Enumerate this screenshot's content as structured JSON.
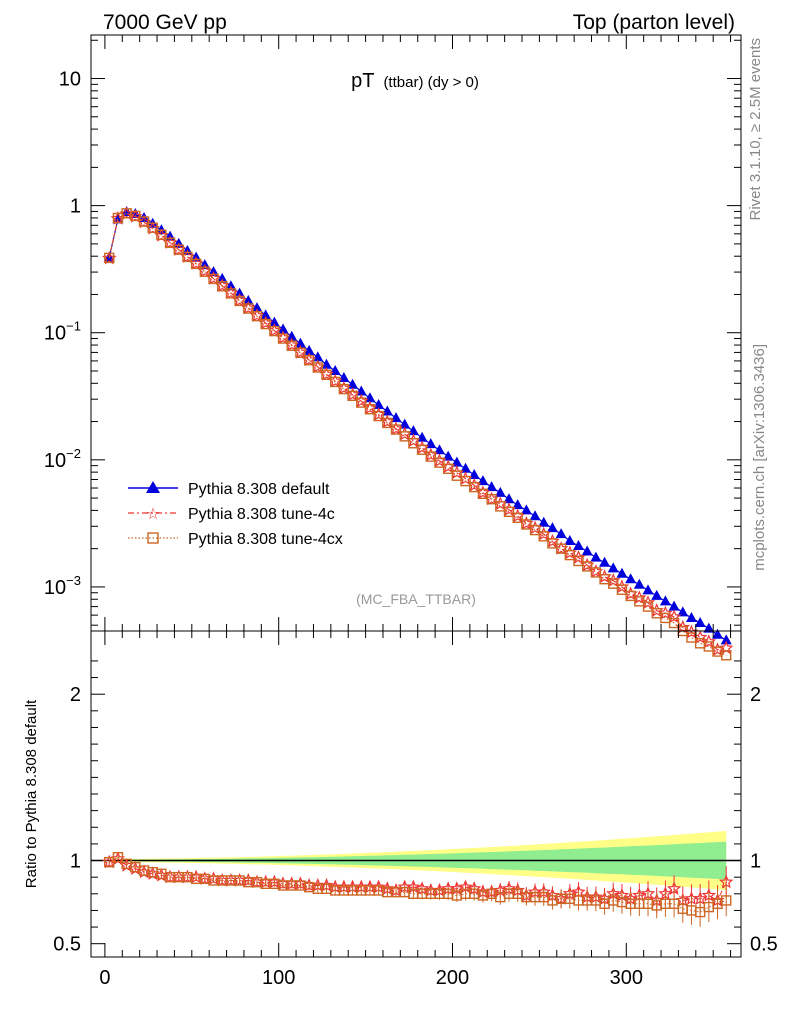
{
  "header": {
    "left": "7000 GeV pp",
    "right": "Top (parton level)"
  },
  "side_labels": {
    "rivet": "Rivet 3.1.10, ≥ 2.5M events",
    "mcplots": "mcplots.cern.ch [arXiv:1306.3436]"
  },
  "chart_data": [
    {
      "type": "line",
      "panel": "main",
      "title_main": "pT",
      "title_sub": "(ttbar) (dy > 0)",
      "watermark": "(MC_FBA_TTBAR)",
      "xlabel": "",
      "ylabel": "",
      "yscale": "log",
      "xlim": [
        -8,
        366
      ],
      "ylim": [
        0.00045,
        22
      ],
      "y_ticks": [
        {
          "v": 10,
          "base": "10",
          "exp": ""
        },
        {
          "v": 1,
          "base": "1",
          "exp": ""
        },
        {
          "v": 0.1,
          "base": "10",
          "exp": "−1"
        },
        {
          "v": 0.01,
          "base": "10",
          "exp": "−2"
        },
        {
          "v": 0.001,
          "base": "10",
          "exp": "−3"
        }
      ],
      "legend_position": "bottom-left",
      "x": [
        2.5,
        7.5,
        12.5,
        17.5,
        22.5,
        27.5,
        32.5,
        37.5,
        42.5,
        47.5,
        52.5,
        57.5,
        62.5,
        67.5,
        72.5,
        77.5,
        82.5,
        87.5,
        92.5,
        97.5,
        102.5,
        107.5,
        112.5,
        117.5,
        122.5,
        127.5,
        132.5,
        137.5,
        142.5,
        147.5,
        152.5,
        157.5,
        162.5,
        167.5,
        172.5,
        177.5,
        182.5,
        187.5,
        192.5,
        197.5,
        202.5,
        207.5,
        212.5,
        217.5,
        222.5,
        227.5,
        232.5,
        237.5,
        242.5,
        247.5,
        252.5,
        257.5,
        262.5,
        267.5,
        272.5,
        277.5,
        282.5,
        287.5,
        292.5,
        297.5,
        302.5,
        307.5,
        312.5,
        317.5,
        322.5,
        327.5,
        332.5,
        337.5,
        342.5,
        347.5,
        352.5,
        357.5
      ],
      "series": [
        {
          "name": "Pythia 8.308 default",
          "color": "#0000dd",
          "marker": "triangle",
          "values": [
            0.39,
            0.78,
            0.89,
            0.86,
            0.8,
            0.72,
            0.64,
            0.57,
            0.5,
            0.44,
            0.39,
            0.34,
            0.3,
            0.265,
            0.232,
            0.203,
            0.178,
            0.156,
            0.137,
            0.12,
            0.106,
            0.093,
            0.082,
            0.072,
            0.064,
            0.056,
            0.05,
            0.044,
            0.039,
            0.0345,
            0.0305,
            0.027,
            0.024,
            0.0213,
            0.0189,
            0.0168,
            0.0149,
            0.0133,
            0.0119,
            0.0106,
            0.0095,
            0.0085,
            0.0076,
            0.0068,
            0.0061,
            0.0055,
            0.0049,
            0.0044,
            0.004,
            0.0036,
            0.0032,
            0.0029,
            0.0026,
            0.0023,
            0.0021,
            0.0019,
            0.0017,
            0.00155,
            0.0014,
            0.00127,
            0.00115,
            0.00104,
            0.00094,
            0.00085,
            0.00077,
            0.0007,
            0.00063,
            0.00057,
            0.00052,
            0.00047,
            0.00042,
            0.00038
          ]
        },
        {
          "name": "Pythia 8.308 tune-4c",
          "color": "#ee3333",
          "marker": "star",
          "values": [
            0.385,
            0.79,
            0.86,
            0.82,
            0.74,
            0.66,
            0.58,
            0.51,
            0.45,
            0.395,
            0.35,
            0.305,
            0.267,
            0.234,
            0.205,
            0.179,
            0.156,
            0.136,
            0.119,
            0.104,
            0.091,
            0.08,
            0.07,
            0.061,
            0.0538,
            0.047,
            0.0415,
            0.0365,
            0.0325,
            0.0289,
            0.0255,
            0.0227,
            0.0199,
            0.0175,
            0.0159,
            0.0141,
            0.0124,
            0.0109,
            0.0098,
            0.0088,
            0.0079,
            0.0071,
            0.0063,
            0.0055,
            0.0049,
            0.0045,
            0.00405,
            0.0036,
            0.00315,
            0.0029,
            0.0026,
            0.00228,
            0.002,
            0.00185,
            0.0017,
            0.00148,
            0.00132,
            0.0012,
            0.00112,
            0.001,
            0.00088,
            0.00082,
            0.00075,
            0.00065,
            0.00062,
            0.00058,
            0.00048,
            0.00044,
            0.0004,
            0.00037,
            0.00032,
            0.00033
          ]
        },
        {
          "name": "Pythia 8.308 tune-4cx",
          "color": "#cc6622",
          "marker": "square",
          "values": [
            0.388,
            0.8,
            0.87,
            0.83,
            0.75,
            0.67,
            0.59,
            0.51,
            0.45,
            0.395,
            0.348,
            0.302,
            0.265,
            0.232,
            0.204,
            0.178,
            0.155,
            0.135,
            0.117,
            0.103,
            0.09,
            0.079,
            0.0695,
            0.0608,
            0.0533,
            0.0467,
            0.041,
            0.036,
            0.0319,
            0.0282,
            0.025,
            0.0221,
            0.0195,
            0.0173,
            0.0153,
            0.0135,
            0.012,
            0.0106,
            0.0095,
            0.0085,
            0.0075,
            0.0068,
            0.0061,
            0.0054,
            0.0049,
            0.0043,
            0.0039,
            0.0035,
            0.0031,
            0.0028,
            0.0025,
            0.0022,
            0.002,
            0.00178,
            0.0016,
            0.00145,
            0.0013,
            0.00115,
            0.00106,
            0.00095,
            0.00085,
            0.00077,
            0.0007,
            0.00062,
            0.00057,
            0.00052,
            0.00045,
            0.0004,
            0.00036,
            0.00034,
            0.00031,
            0.00029
          ]
        }
      ]
    },
    {
      "type": "line",
      "panel": "ratio",
      "ylabel": "Ratio to Pythia 8.308 default",
      "xlabel": "",
      "xlim": [
        -8,
        366
      ],
      "ylim": [
        0.42,
        2.38
      ],
      "y_ticks": [
        0.5,
        1,
        2
      ],
      "x_ticks": [
        0,
        100,
        200,
        300
      ],
      "band_colors": {
        "inner": "#90ee90",
        "outer": "#ffff88"
      },
      "series": [
        {
          "name": "Pythia 8.308 tune-4c",
          "color": "#ee3333",
          "values": [
            0.99,
            1.01,
            0.97,
            0.95,
            0.93,
            0.92,
            0.91,
            0.9,
            0.9,
            0.9,
            0.9,
            0.89,
            0.89,
            0.88,
            0.88,
            0.88,
            0.88,
            0.87,
            0.87,
            0.87,
            0.86,
            0.86,
            0.86,
            0.85,
            0.85,
            0.85,
            0.84,
            0.84,
            0.84,
            0.84,
            0.84,
            0.84,
            0.83,
            0.82,
            0.84,
            0.84,
            0.83,
            0.82,
            0.82,
            0.83,
            0.83,
            0.84,
            0.83,
            0.81,
            0.81,
            0.82,
            0.83,
            0.82,
            0.79,
            0.81,
            0.81,
            0.79,
            0.77,
            0.8,
            0.81,
            0.78,
            0.78,
            0.77,
            0.8,
            0.79,
            0.77,
            0.79,
            0.8,
            0.76,
            0.8,
            0.83,
            0.76,
            0.77,
            0.77,
            0.79,
            0.76,
            0.87
          ]
        },
        {
          "name": "Pythia 8.308 tune-4cx",
          "color": "#cc6622",
          "values": [
            0.99,
            1.02,
            0.98,
            0.96,
            0.94,
            0.93,
            0.92,
            0.9,
            0.9,
            0.9,
            0.89,
            0.89,
            0.88,
            0.88,
            0.88,
            0.88,
            0.87,
            0.87,
            0.86,
            0.86,
            0.85,
            0.85,
            0.85,
            0.84,
            0.83,
            0.83,
            0.82,
            0.82,
            0.82,
            0.82,
            0.82,
            0.82,
            0.81,
            0.81,
            0.81,
            0.8,
            0.8,
            0.8,
            0.8,
            0.8,
            0.79,
            0.8,
            0.8,
            0.79,
            0.8,
            0.78,
            0.8,
            0.8,
            0.78,
            0.78,
            0.78,
            0.76,
            0.77,
            0.77,
            0.76,
            0.76,
            0.76,
            0.74,
            0.76,
            0.75,
            0.74,
            0.74,
            0.74,
            0.73,
            0.74,
            0.74,
            0.71,
            0.7,
            0.69,
            0.72,
            0.74,
            0.76
          ]
        }
      ]
    }
  ]
}
